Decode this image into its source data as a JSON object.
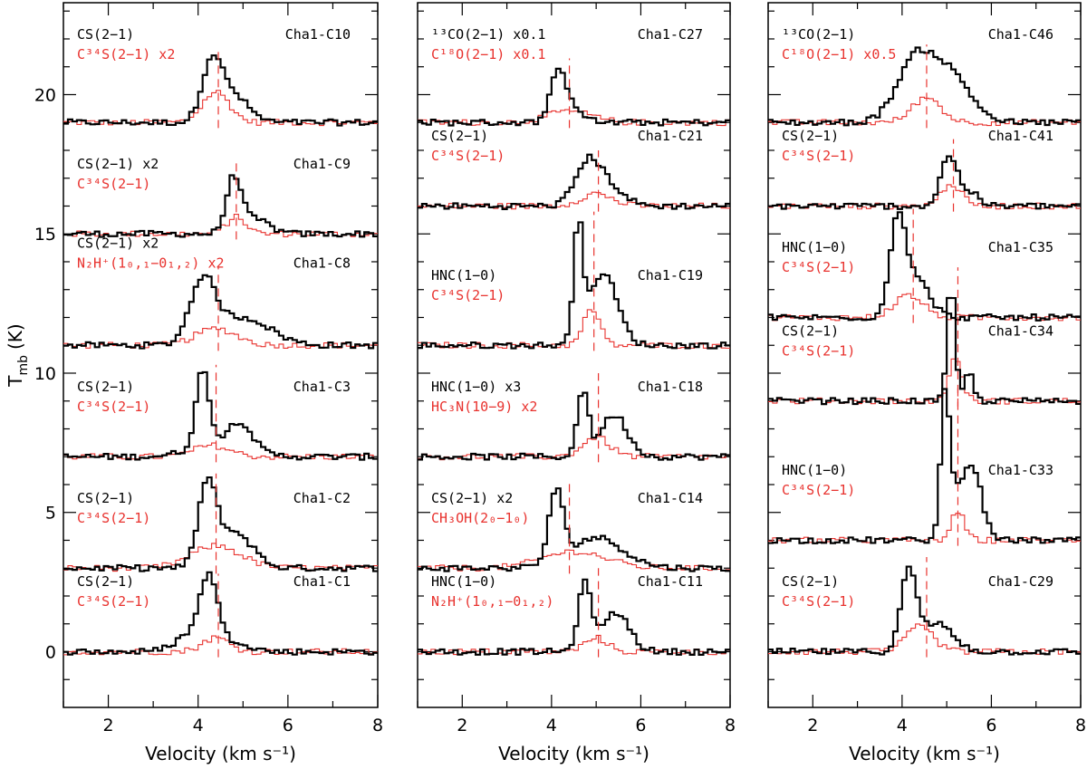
{
  "chart_data": {
    "type": "line",
    "title": "",
    "xlabel": "Velocity (km s⁻¹)",
    "ylabel": "T",
    "ylabel_sub": "mb",
    "ylabel_unit": "(K)",
    "xlim": [
      1,
      8
    ],
    "ylim": [
      -2,
      23.3
    ],
    "xticks": [
      2,
      4,
      6,
      8
    ],
    "yticks": [
      0,
      5,
      10,
      15,
      20
    ],
    "colors": {
      "main": "#000000",
      "ref": "#e8322e",
      "axis": "#000000"
    },
    "panels": [
      {
        "name": "left",
        "spectra": [
          {
            "source": "Cha1-C10",
            "main_label": "CS(2−1)",
            "ref_label": "C³⁴S(2−1) x2",
            "baseline": 19,
            "vlsr": 4.45,
            "main": [
              {
                "v": 4.3,
                "a": 2.0,
                "w": 0.22
              },
              {
                "v": 4.75,
                "a": 1.0,
                "w": 0.35
              }
            ],
            "ref": [
              {
                "v": 4.4,
                "a": 1.1,
                "w": 0.3
              }
            ]
          },
          {
            "source": "Cha1-C9",
            "main_label": "CS(2−1) x2",
            "ref_label": "C³⁴S(2−1)",
            "baseline": 15,
            "vlsr": 4.85,
            "main": [
              {
                "v": 4.8,
                "a": 2.0,
                "w": 0.17
              },
              {
                "v": 5.3,
                "a": 0.5,
                "w": 0.3
              }
            ],
            "ref": [
              {
                "v": 4.85,
                "a": 0.6,
                "w": 0.22
              }
            ]
          },
          {
            "source": "Cha1-C8",
            "main_label": "CS(2−1) x2",
            "ref_label": "N₂H⁺(1₀,₁−0₁,₂) x2",
            "baseline": 11,
            "vlsr": 4.45,
            "main": [
              {
                "v": 4.1,
                "a": 2.2,
                "w": 0.28
              },
              {
                "v": 5.0,
                "a": 1.0,
                "w": 0.6
              }
            ],
            "ref": [
              {
                "v": 4.4,
                "a": 0.6,
                "w": 0.45
              }
            ]
          },
          {
            "source": "Cha1-C3",
            "main_label": "CS(2−1)",
            "ref_label": "C³⁴S(2−1)",
            "baseline": 7,
            "vlsr": 4.4,
            "main": [
              {
                "v": 4.1,
                "a": 2.7,
                "w": 0.15
              },
              {
                "v": 4.95,
                "a": 0.9,
                "w": 0.25
              },
              {
                "v": 4.5,
                "a": 0.5,
                "w": 0.6
              }
            ],
            "ref": [
              {
                "v": 4.3,
                "a": 0.4,
                "w": 0.4
              }
            ]
          },
          {
            "source": "Cha1-C2",
            "main_label": "CS(2−1)",
            "ref_label": "C³⁴S(2−1)",
            "baseline": 3,
            "vlsr": 4.4,
            "main": [
              {
                "v": 4.2,
                "a": 2.8,
                "w": 0.2
              },
              {
                "v": 4.8,
                "a": 1.3,
                "w": 0.4
              }
            ],
            "ref": [
              {
                "v": 4.4,
                "a": 0.8,
                "w": 0.55
              }
            ]
          },
          {
            "source": "Cha1-C1",
            "main_label": "CS(2−1)",
            "ref_label": "C³⁴S(2−1)",
            "baseline": 0,
            "vlsr": 4.45,
            "main": [
              {
                "v": 4.25,
                "a": 2.2,
                "w": 0.18
              },
              {
                "v": 4.0,
                "a": 0.8,
                "w": 0.4
              },
              {
                "v": 4.9,
                "a": 0.3,
                "w": 0.3
              }
            ],
            "ref": [
              {
                "v": 4.4,
                "a": 0.5,
                "w": 0.3
              }
            ]
          }
        ]
      },
      {
        "name": "middle",
        "spectra": [
          {
            "source": "Cha1-C27",
            "main_label": "¹³CO(2−1) x0.1",
            "ref_label": "C¹⁸O(2−1) x0.1",
            "baseline": 19,
            "vlsr": 4.4,
            "main": [
              {
                "v": 4.15,
                "a": 1.7,
                "w": 0.18
              },
              {
                "v": 4.5,
                "a": 0.5,
                "w": 0.22
              }
            ],
            "ref": [
              {
                "v": 4.4,
                "a": 0.4,
                "w": 0.5
              }
            ]
          },
          {
            "source": "Cha1-C21",
            "main_label": "CS(2−1)",
            "ref_label": "C³⁴S(2−1)",
            "baseline": 16,
            "vlsr": 5.05,
            "main": [
              {
                "v": 4.8,
                "a": 1.4,
                "w": 0.28
              },
              {
                "v": 5.25,
                "a": 0.7,
                "w": 0.35
              }
            ],
            "ref": [
              {
                "v": 5.0,
                "a": 0.45,
                "w": 0.35
              }
            ]
          },
          {
            "source": "Cha1-C19",
            "main_label": "HNC(1−0)",
            "ref_label": "C³⁴S(2−1)",
            "baseline": 11,
            "vlsr": 4.95,
            "main": [
              {
                "v": 4.6,
                "a": 4.2,
                "w": 0.1
              },
              {
                "v": 5.15,
                "a": 2.6,
                "w": 0.32
              }
            ],
            "ref": [
              {
                "v": 4.9,
                "a": 1.3,
                "w": 0.18
              }
            ]
          },
          {
            "source": "Cha1-C18",
            "main_label": "HNC(1−0) x3",
            "ref_label": "HC₃N(10−9) x2",
            "baseline": 7,
            "vlsr": 5.05,
            "main": [
              {
                "v": 4.7,
                "a": 2.4,
                "w": 0.12
              },
              {
                "v": 5.4,
                "a": 1.5,
                "w": 0.3
              }
            ],
            "ref": [
              {
                "v": 5.0,
                "a": 0.7,
                "w": 0.3
              }
            ]
          },
          {
            "source": "Cha1-C14",
            "main_label": "CS(2−1) x2",
            "ref_label": "CH₃OH(2₀−1₀)",
            "baseline": 3,
            "vlsr": 4.4,
            "main": [
              {
                "v": 4.1,
                "a": 2.5,
                "w": 0.16
              },
              {
                "v": 5.0,
                "a": 1.1,
                "w": 0.6
              }
            ],
            "ref": [
              {
                "v": 4.5,
                "a": 0.6,
                "w": 0.7
              }
            ]
          },
          {
            "source": "Cha1-C11",
            "main_label": "HNC(1−0)",
            "ref_label": "N₂H⁺(1₀,₁−0₁,₂)",
            "baseline": 0,
            "vlsr": 5.05,
            "main": [
              {
                "v": 4.75,
                "a": 2.4,
                "w": 0.15
              },
              {
                "v": 5.45,
                "a": 1.4,
                "w": 0.3
              }
            ],
            "ref": [
              {
                "v": 5.0,
                "a": 0.5,
                "w": 0.25
              }
            ]
          }
        ]
      },
      {
        "name": "right",
        "spectra": [
          {
            "source": "Cha1-C46",
            "main_label": "¹³CO(2−1)",
            "ref_label": "C¹⁸O(2−1) x0.5",
            "baseline": 19,
            "vlsr": 4.55,
            "main": [
              {
                "v": 4.3,
                "a": 2.2,
                "w": 0.42
              },
              {
                "v": 5.1,
                "a": 1.6,
                "w": 0.45
              }
            ],
            "ref": [
              {
                "v": 4.55,
                "a": 0.9,
                "w": 0.32
              }
            ]
          },
          {
            "source": "Cha1-C41",
            "main_label": "CS(2−1)",
            "ref_label": "C³⁴S(2−1)",
            "baseline": 16,
            "vlsr": 5.15,
            "main": [
              {
                "v": 5.05,
                "a": 1.8,
                "w": 0.18
              },
              {
                "v": 5.5,
                "a": 0.5,
                "w": 0.2
              }
            ],
            "ref": [
              {
                "v": 5.1,
                "a": 0.8,
                "w": 0.22
              }
            ]
          },
          {
            "source": "Cha1-C35",
            "main_label": "HNC(1−0)",
            "ref_label": "C³⁴S(2−1)",
            "baseline": 12,
            "vlsr": 4.25,
            "main": [
              {
                "v": 3.9,
                "a": 3.3,
                "w": 0.17
              },
              {
                "v": 4.3,
                "a": 1.4,
                "w": 0.3
              }
            ],
            "ref": [
              {
                "v": 4.15,
                "a": 0.8,
                "w": 0.32
              }
            ]
          },
          {
            "source": "Cha1-C34",
            "main_label": "CS(2−1)",
            "ref_label": "C³⁴S(2−1)",
            "baseline": 9,
            "vlsr": 5.25,
            "main": [
              {
                "v": 5.1,
                "a": 4.2,
                "w": 0.09
              },
              {
                "v": 5.5,
                "a": 1.0,
                "w": 0.1
              }
            ],
            "ref": [
              {
                "v": 5.2,
                "a": 1.5,
                "w": 0.15
              }
            ]
          },
          {
            "source": "Cha1-C33",
            "main_label": "HNC(1−0)",
            "ref_label": "C³⁴S(2−1)",
            "baseline": 4,
            "vlsr": 5.25,
            "main": [
              {
                "v": 4.97,
                "a": 4.9,
                "w": 0.1
              },
              {
                "v": 5.6,
                "a": 2.3,
                "w": 0.2
              },
              {
                "v": 5.25,
                "a": 1.4,
                "w": 0.22
              }
            ],
            "ref": [
              {
                "v": 5.25,
                "a": 1.0,
                "w": 0.15
              }
            ]
          },
          {
            "source": "Cha1-C29",
            "main_label": "CS(2−1)",
            "ref_label": "C³⁴S(2−1)",
            "baseline": 0,
            "vlsr": 4.55,
            "main": [
              {
                "v": 4.15,
                "a": 2.8,
                "w": 0.18
              },
              {
                "v": 4.8,
                "a": 1.0,
                "w": 0.35
              }
            ],
            "ref": [
              {
                "v": 4.4,
                "a": 0.9,
                "w": 0.3
              }
            ]
          }
        ]
      }
    ]
  }
}
